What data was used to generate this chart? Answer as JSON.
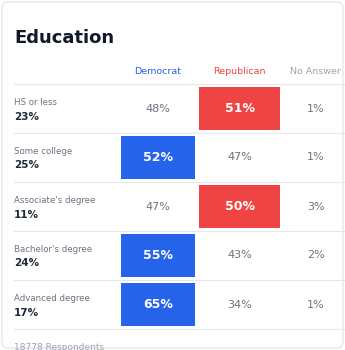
{
  "title": "Education",
  "columns": [
    "Democrat",
    "Republican",
    "No Answer"
  ],
  "rows": [
    {
      "label": "HS or less",
      "pct": "23%",
      "values": [
        "48%",
        "51%",
        "1%"
      ],
      "highlight": 1,
      "highlight_color": "republican"
    },
    {
      "label": "Some college",
      "pct": "25%",
      "values": [
        "52%",
        "47%",
        "1%"
      ],
      "highlight": 0,
      "highlight_color": "democrat"
    },
    {
      "label": "Associate's degree",
      "pct": "11%",
      "values": [
        "47%",
        "50%",
        "3%"
      ],
      "highlight": 1,
      "highlight_color": "republican"
    },
    {
      "label": "Bachelor's degree",
      "pct": "24%",
      "values": [
        "55%",
        "43%",
        "2%"
      ],
      "highlight": 0,
      "highlight_color": "democrat"
    },
    {
      "label": "Advanced degree",
      "pct": "17%",
      "values": [
        "65%",
        "34%",
        "1%"
      ],
      "highlight": 0,
      "highlight_color": "democrat"
    }
  ],
  "footer": "18778 Respondents",
  "democrat_color": "#2563EB",
  "republican_color": "#EF4444",
  "bg_color": "#FFFFFF",
  "header_dem_color": "#2563EB",
  "header_rep_color": "#EF4444",
  "header_na_color": "#9CA3AF",
  "label_color": "#6B7280",
  "pct_bold_color": "#1F2937",
  "value_color": "#6B7280",
  "highlight_text_color": "#FFFFFF",
  "title_color": "#111827",
  "footer_color": "#9CA3AF",
  "border_color": "#E5E7EB",
  "outer_border_color": "#E5E7EB"
}
